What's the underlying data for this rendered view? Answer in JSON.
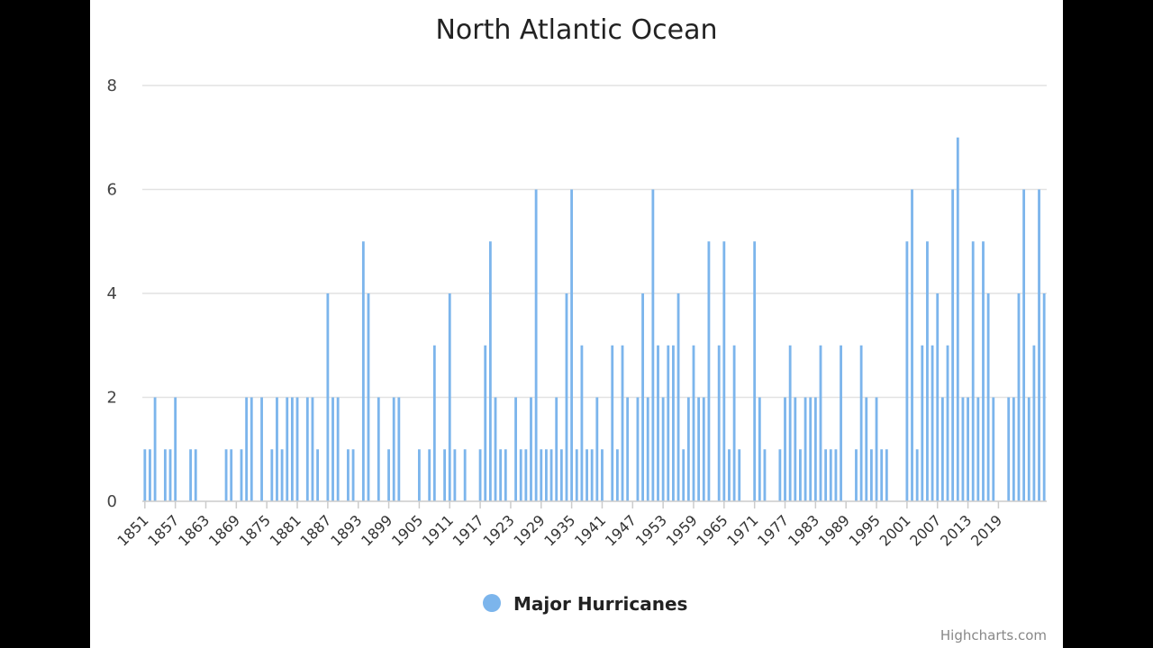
{
  "chart_data": {
    "type": "bar",
    "title": "North Atlantic Ocean",
    "xlabel": "",
    "ylabel": "",
    "ylim": [
      0,
      8
    ],
    "y_ticks": [
      0,
      2,
      4,
      6,
      8
    ],
    "grid": true,
    "x_start": 1851,
    "x_tick_labels": [
      "1851",
      "1857",
      "1863",
      "1869",
      "1875",
      "1881",
      "1887",
      "1893",
      "1899",
      "1905",
      "1911",
      "1917",
      "1923",
      "1929",
      "1935",
      "1941",
      "1947",
      "1953",
      "1959",
      "1965",
      "1971",
      "1977",
      "1983",
      "1989",
      "1995",
      "2001",
      "2007",
      "2013",
      "2019"
    ],
    "legend_position": "bottom-center",
    "series": [
      {
        "name": "Major Hurricanes",
        "color": "#7cb5ec",
        "values": [
          1,
          1,
          2,
          0,
          1,
          1,
          2,
          0,
          0,
          1,
          1,
          0,
          0,
          0,
          0,
          0,
          1,
          1,
          0,
          1,
          2,
          2,
          0,
          2,
          0,
          1,
          2,
          1,
          2,
          2,
          2,
          0,
          2,
          2,
          1,
          0,
          4,
          2,
          2,
          0,
          1,
          1,
          0,
          5,
          4,
          0,
          2,
          0,
          1,
          2,
          2,
          0,
          0,
          0,
          1,
          0,
          1,
          3,
          0,
          1,
          4,
          1,
          0,
          1,
          0,
          0,
          1,
          3,
          5,
          2,
          1,
          1,
          0,
          2,
          1,
          1,
          2,
          6,
          1,
          1,
          1,
          2,
          1,
          4,
          6,
          1,
          3,
          1,
          1,
          2,
          1,
          0,
          3,
          1,
          3,
          2,
          0,
          2,
          4,
          2,
          6,
          3,
          2,
          3,
          3,
          4,
          1,
          2,
          3,
          2,
          2,
          5,
          0,
          3,
          5,
          1,
          3,
          1,
          0,
          0,
          5,
          2,
          1,
          0,
          0,
          1,
          2,
          3,
          2,
          1,
          2,
          2,
          2,
          3,
          1,
          1,
          1,
          3,
          0,
          0,
          1,
          3,
          2,
          1,
          2,
          1,
          1,
          0,
          0,
          0,
          5,
          6,
          1,
          3,
          5,
          3,
          4,
          2,
          3,
          6,
          7,
          2,
          2,
          5,
          2,
          5,
          4,
          2,
          0,
          0,
          2,
          2,
          4,
          6,
          2,
          3,
          6,
          4
        ]
      }
    ]
  },
  "credits": "Highcharts.com"
}
